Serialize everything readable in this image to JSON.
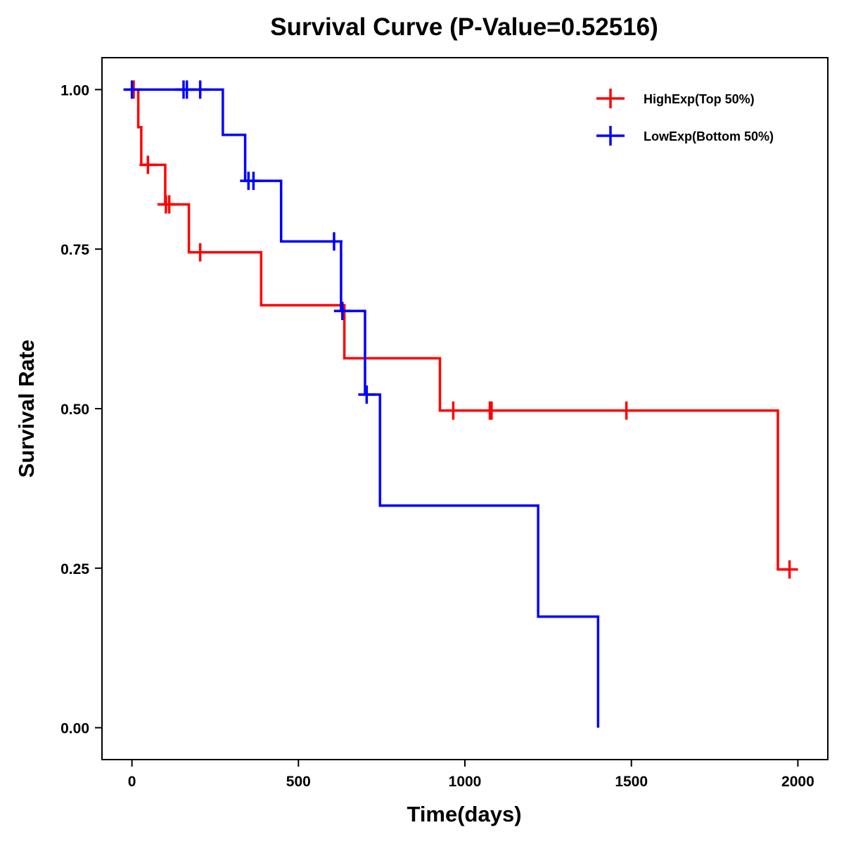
{
  "chart_data": {
    "type": "line",
    "subtype": "kaplan-meier-step",
    "title": "Survival Curve (P-Value=0.52516)",
    "xlabel": "Time(days)",
    "ylabel": "Survival Rate",
    "xlim": [
      -90,
      2090
    ],
    "ylim": [
      -0.05,
      1.05
    ],
    "xticks": [
      0,
      500,
      1000,
      1500,
      2000
    ],
    "xtick_labels": [
      "0",
      "500",
      "1000",
      "1500",
      "2000"
    ],
    "yticks": [
      0,
      0.25,
      0.5,
      0.75,
      1.0
    ],
    "ytick_labels": [
      "0.00",
      "0.25",
      "0.50",
      "0.75",
      "1.00"
    ],
    "grid": false,
    "legend_position": "top-right",
    "series": [
      {
        "name": "HighExp(Top 50%)",
        "color": "#ff0000",
        "steps": [
          {
            "t": 0,
            "s": 1.0
          },
          {
            "t": 19,
            "s": 0.941
          },
          {
            "t": 28,
            "s": 0.882
          },
          {
            "t": 100,
            "s": 0.82
          },
          {
            "t": 171,
            "s": 0.745
          },
          {
            "t": 388,
            "s": 0.662
          },
          {
            "t": 638,
            "s": 0.579
          },
          {
            "t": 925,
            "s": 0.497
          },
          {
            "t": 1940,
            "s": 0.248
          }
        ],
        "end_time": 1975,
        "censored": [
          {
            "t": 5,
            "s": 1.0
          },
          {
            "t": 48,
            "s": 0.882
          },
          {
            "t": 102,
            "s": 0.82
          },
          {
            "t": 112,
            "s": 0.82
          },
          {
            "t": 205,
            "s": 0.745
          },
          {
            "t": 965,
            "s": 0.497
          },
          {
            "t": 1075,
            "s": 0.497
          },
          {
            "t": 1080,
            "s": 0.497
          },
          {
            "t": 1485,
            "s": 0.497
          },
          {
            "t": 1975,
            "s": 0.248
          }
        ]
      },
      {
        "name": "LowExp(Bottom 50%)",
        "color": "#0000ff",
        "steps": [
          {
            "t": 0,
            "s": 1.0
          },
          {
            "t": 273,
            "s": 0.929
          },
          {
            "t": 340,
            "s": 0.857
          },
          {
            "t": 448,
            "s": 0.762
          },
          {
            "t": 628,
            "s": 0.653
          },
          {
            "t": 700,
            "s": 0.522
          },
          {
            "t": 745,
            "s": 0.348
          },
          {
            "t": 1220,
            "s": 0.174
          },
          {
            "t": 1400,
            "s": 0.0
          }
        ],
        "end_time": 1400,
        "censored": [
          {
            "t": 0,
            "s": 1.0
          },
          {
            "t": 155,
            "s": 1.0
          },
          {
            "t": 165,
            "s": 1.0
          },
          {
            "t": 205,
            "s": 1.0
          },
          {
            "t": 350,
            "s": 0.857
          },
          {
            "t": 365,
            "s": 0.857
          },
          {
            "t": 607,
            "s": 0.762
          },
          {
            "t": 632,
            "s": 0.653
          },
          {
            "t": 705,
            "s": 0.522
          }
        ]
      }
    ]
  }
}
